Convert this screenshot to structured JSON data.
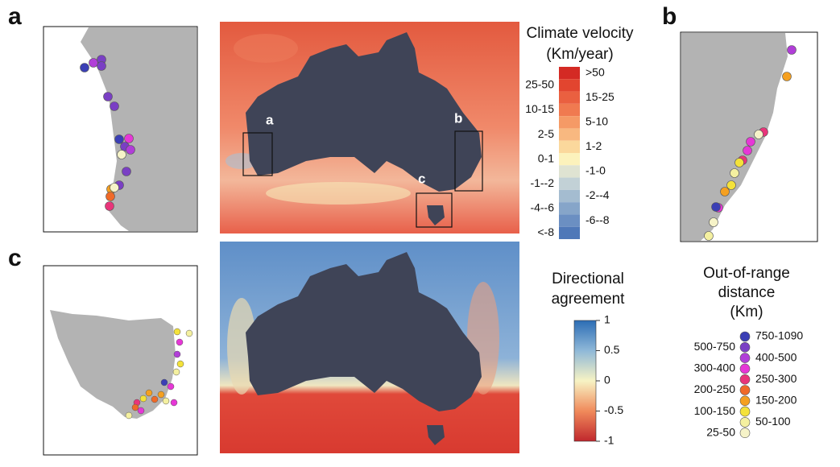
{
  "panels": {
    "a": "a",
    "b": "b",
    "c": "c"
  },
  "map_boxes": [
    "a",
    "b",
    "c"
  ],
  "climate_velocity_legend": {
    "title_lines": [
      "Climate velocity",
      "(Km/year)"
    ],
    "classes": [
      {
        "label": ">50",
        "color": "#d42a24"
      },
      {
        "label": "25-50",
        "color": "#e2452f"
      },
      {
        "label": "15-25",
        "color": "#ea6040"
      },
      {
        "label": "10-15",
        "color": "#f07a50"
      },
      {
        "label": "5-10",
        "color": "#f59a66"
      },
      {
        "label": "2-5",
        "color": "#f8b880"
      },
      {
        "label": "1-2",
        "color": "#fbd89c"
      },
      {
        "label": "0-1",
        "color": "#fcf2bc"
      },
      {
        "label": "-1-0",
        "color": "#dfe3d2"
      },
      {
        "label": "-1--2",
        "color": "#c2d1d6"
      },
      {
        "label": "-2--4",
        "color": "#a4bcd0"
      },
      {
        "label": "-4--6",
        "color": "#86a5c9"
      },
      {
        "label": "-6--8",
        "color": "#6b8fc2"
      },
      {
        "label": "<-8",
        "color": "#4f78b8"
      }
    ]
  },
  "directional_legend": {
    "title_lines": [
      "Directional",
      "agreement"
    ],
    "ticks": [
      1,
      0.5,
      0,
      -0.5,
      -1
    ],
    "lim": [
      -1,
      1
    ],
    "colors": [
      "#2c6db5",
      "#8fb8d8",
      "#f7f3c4",
      "#f08a5b",
      "#c0272d"
    ]
  },
  "out_of_range_legend": {
    "title_lines": [
      "Out-of-range",
      "distance",
      "(Km)"
    ],
    "classes": [
      {
        "label": "750-1090",
        "color": "#3b3fb5"
      },
      {
        "label": "500-750",
        "color": "#7a3fc4"
      },
      {
        "label": "400-500",
        "color": "#b13ed8"
      },
      {
        "label": "300-400",
        "color": "#e637d6"
      },
      {
        "label": "250-300",
        "color": "#e8357a"
      },
      {
        "label": "200-250",
        "color": "#f06a28"
      },
      {
        "label": "150-200",
        "color": "#f5a020"
      },
      {
        "label": "100-150",
        "color": "#f4e23a"
      },
      {
        "label": "50-100",
        "color": "#f4f0a0"
      },
      {
        "label": "25-50",
        "color": "#f6f3c8"
      }
    ]
  }
}
